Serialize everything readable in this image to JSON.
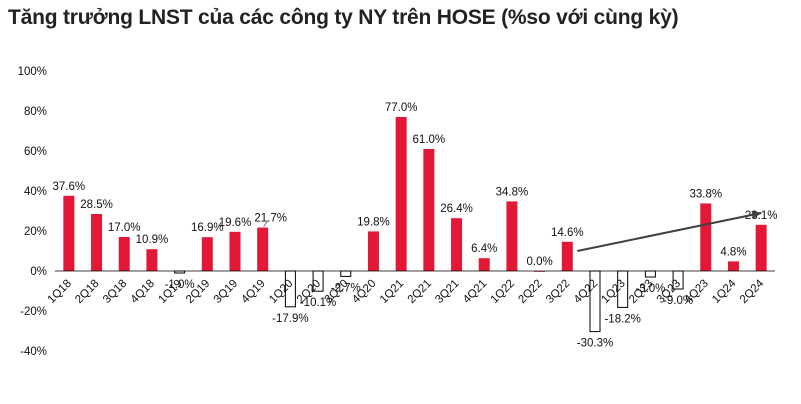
{
  "chart_data": {
    "type": "bar",
    "title": "Tăng trưởng LNST của các công ty NY trên HOSE (%so với cùng kỳ)",
    "xlabel": "",
    "ylabel": "",
    "ylim": [
      -40,
      100
    ],
    "yticks": [
      -40,
      -20,
      0,
      20,
      40,
      60,
      80,
      100
    ],
    "ytick_labels": [
      "-40%",
      "-20%",
      "0%",
      "20%",
      "40%",
      "60%",
      "80%",
      "100%"
    ],
    "grid": false,
    "legend": "none",
    "positive_color": "#E31837",
    "negative_fill": "#ffffff",
    "negative_stroke": "#000000",
    "trend_arrow_color": "#404040",
    "categories": [
      "1Q18",
      "2Q18",
      "3Q18",
      "4Q18",
      "1Q19",
      "2Q19",
      "3Q19",
      "4Q19",
      "1Q20",
      "2Q20",
      "3Q20",
      "4Q20",
      "1Q21",
      "2Q21",
      "3Q21",
      "4Q21",
      "1Q22",
      "2Q22",
      "3Q22",
      "4Q22",
      "1Q23",
      "2Q23",
      "3Q23",
      "4Q23",
      "1Q24",
      "2Q24"
    ],
    "values": [
      37.6,
      28.5,
      17.0,
      10.9,
      -1.0,
      16.9,
      19.6,
      21.7,
      -17.9,
      -10.1,
      -2.7,
      19.8,
      77.0,
      61.0,
      26.4,
      6.4,
      34.8,
      0.0,
      14.6,
      -30.3,
      -18.2,
      -3.0,
      -9.0,
      33.8,
      4.8,
      23.1
    ],
    "data_labels": [
      "37.6%",
      "28.5%",
      "17.0%",
      "10.9%",
      "-1.0%",
      "16.9%",
      "19.6%",
      "21.7%",
      "-17.9%",
      "-10.1%",
      "-2.7%",
      "19.8%",
      "77.0%",
      "61.0%",
      "26.4%",
      "6.4%",
      "34.8%",
      "0.0%",
      "14.6%",
      "-30.3%",
      "-18.2%",
      "-3.0%",
      "-9.0%",
      "33.8%",
      "4.8%",
      "23.1%"
    ],
    "trend_arrow": {
      "from": {
        "x": "3Q22",
        "y": 10
      },
      "to": {
        "x": "2Q24",
        "y": 29
      }
    }
  }
}
